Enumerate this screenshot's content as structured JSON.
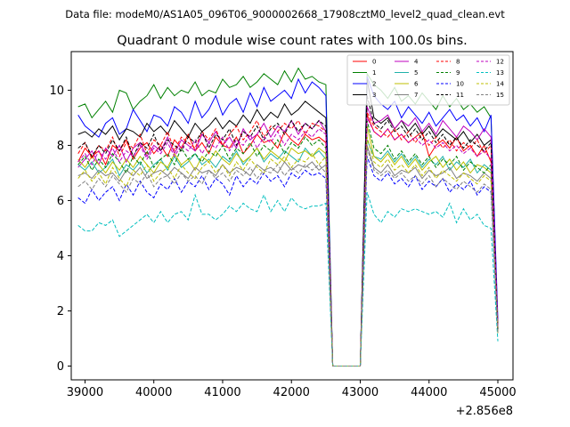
{
  "chart_data": {
    "type": "line",
    "suptitle": "Data file: modeM0/AS1A05_096T06_9000002668_17908cztM0_level2_quad_clean.evt",
    "title": "Quadrant 0 module wise count rates with 100.0s bins.",
    "xlabel": "",
    "ylabel": "",
    "x_offset_label": "+2.856e8",
    "xlim": [
      38800,
      45220
    ],
    "ylim": [
      -0.5,
      11.4
    ],
    "xticks": [
      39000,
      40000,
      41000,
      42000,
      43000,
      44000,
      45000
    ],
    "yticks": [
      0,
      2,
      4,
      6,
      8,
      10
    ],
    "legend_position": "top-right",
    "x_start": 38900,
    "x_step": 100,
    "series": [
      {
        "name": "0",
        "color": "#ff0000",
        "dash": "solid",
        "values": [
          7.4,
          7.9,
          7.6,
          7.8,
          7.3,
          8.0,
          7.8,
          8.2,
          7.5,
          7.9,
          8.1,
          7.7,
          8.0,
          7.6,
          8.2,
          7.9,
          8.4,
          7.8,
          8.1,
          7.7,
          8.3,
          8.0,
          7.9,
          8.3,
          7.7,
          8.0,
          8.4,
          8.1,
          8.2,
          7.9,
          8.5,
          8.2,
          8.0,
          8.4,
          8.2,
          8.3,
          8.1,
          0.0,
          0.0,
          0.0,
          0.0,
          0.0,
          9.1,
          8.5,
          8.3,
          8.6,
          8.2,
          8.4,
          8.1,
          8.3,
          8.5,
          7.6,
          8.0,
          8.2,
          7.9,
          8.3,
          7.8,
          8.0,
          7.6,
          8.0,
          7.4,
          1.5
        ]
      },
      {
        "name": "1",
        "color": "#008000",
        "dash": "solid",
        "values": [
          9.4,
          9.5,
          9.0,
          9.3,
          9.6,
          9.2,
          10.0,
          9.9,
          9.3,
          9.6,
          9.8,
          10.2,
          9.7,
          10.1,
          9.8,
          10.0,
          9.9,
          10.3,
          9.8,
          10.0,
          9.9,
          10.4,
          10.1,
          10.2,
          10.5,
          10.1,
          10.3,
          10.6,
          10.4,
          10.2,
          10.7,
          10.3,
          10.8,
          10.4,
          10.5,
          10.3,
          10.2,
          0.0,
          0.0,
          0.0,
          0.0,
          0.0,
          10.6,
          10.2,
          10.0,
          9.7,
          10.1,
          9.6,
          9.8,
          9.5,
          9.9,
          9.6,
          9.3,
          9.8,
          9.4,
          9.7,
          9.3,
          9.5,
          9.2,
          9.4,
          9.0,
          1.4
        ]
      },
      {
        "name": "2",
        "color": "#0000ff",
        "dash": "solid",
        "values": [
          9.1,
          8.7,
          8.5,
          8.3,
          8.8,
          9.0,
          8.4,
          8.6,
          9.3,
          8.9,
          8.5,
          9.1,
          9.0,
          8.7,
          9.4,
          9.2,
          8.8,
          9.6,
          9.0,
          9.3,
          9.8,
          9.1,
          9.5,
          9.7,
          9.2,
          9.9,
          9.4,
          10.1,
          9.6,
          9.8,
          10.0,
          9.7,
          10.4,
          9.9,
          10.3,
          10.1,
          9.8,
          0.0,
          0.0,
          0.0,
          0.0,
          0.0,
          10.5,
          9.8,
          9.5,
          9.3,
          9.6,
          9.0,
          9.4,
          9.1,
          8.8,
          9.2,
          8.7,
          9.0,
          9.3,
          8.9,
          9.1,
          8.7,
          9.0,
          8.5,
          9.1,
          1.7
        ]
      },
      {
        "name": "3",
        "color": "#000000",
        "dash": "solid",
        "values": [
          8.4,
          8.5,
          8.3,
          8.6,
          8.4,
          8.7,
          8.2,
          8.6,
          8.5,
          8.3,
          8.8,
          8.5,
          8.7,
          8.4,
          8.9,
          8.6,
          8.3,
          8.8,
          8.5,
          8.7,
          9.0,
          8.6,
          8.9,
          8.7,
          9.1,
          8.8,
          9.3,
          8.9,
          9.2,
          9.0,
          9.5,
          9.1,
          9.3,
          9.6,
          9.4,
          9.2,
          9.0,
          0.0,
          0.0,
          0.0,
          0.0,
          0.0,
          10.4,
          9.0,
          8.8,
          9.0,
          8.6,
          8.9,
          8.5,
          8.8,
          8.4,
          8.7,
          8.3,
          8.6,
          8.4,
          8.2,
          8.5,
          8.1,
          8.4,
          8.0,
          8.2,
          1.3
        ]
      },
      {
        "name": "4",
        "color": "#bf00bf",
        "dash": "solid",
        "values": [
          7.2,
          7.5,
          7.8,
          7.3,
          7.9,
          7.6,
          8.0,
          7.4,
          7.9,
          8.1,
          7.6,
          8.0,
          7.8,
          8.3,
          7.7,
          8.2,
          8.0,
          7.8,
          8.4,
          8.1,
          8.5,
          8.0,
          8.3,
          7.9,
          8.6,
          8.2,
          8.4,
          8.8,
          8.3,
          8.7,
          8.5,
          8.9,
          8.4,
          8.8,
          8.6,
          8.9,
          8.5,
          0.0,
          0.0,
          0.0,
          0.0,
          0.0,
          9.4,
          8.8,
          8.9,
          9.1,
          8.6,
          8.9,
          8.7,
          9.0,
          8.5,
          8.8,
          8.4,
          8.9,
          8.6,
          8.3,
          8.7,
          8.5,
          8.2,
          8.6,
          8.3,
          1.5
        ]
      },
      {
        "name": "5",
        "color": "#20b2aa",
        "dash": "solid",
        "values": [
          7.3,
          7.1,
          7.4,
          7.0,
          7.2,
          7.5,
          6.9,
          7.3,
          7.1,
          7.4,
          7.0,
          7.3,
          7.5,
          7.1,
          7.6,
          7.2,
          7.4,
          7.7,
          7.3,
          7.5,
          7.2,
          7.6,
          7.4,
          7.8,
          7.3,
          7.6,
          7.9,
          7.4,
          7.7,
          7.5,
          7.8,
          7.6,
          7.4,
          7.9,
          7.6,
          7.8,
          7.5,
          0.0,
          0.0,
          0.0,
          0.0,
          0.0,
          8.2,
          7.6,
          7.5,
          7.8,
          7.4,
          7.7,
          7.3,
          7.6,
          7.2,
          7.5,
          7.3,
          7.6,
          7.1,
          7.4,
          7.2,
          7.5,
          7.0,
          7.3,
          7.1,
          1.2
        ]
      },
      {
        "name": "6",
        "color": "#bfbf00",
        "dash": "solid",
        "values": [
          7.5,
          7.2,
          7.6,
          7.3,
          7.0,
          7.4,
          7.1,
          7.5,
          7.2,
          7.6,
          7.3,
          7.0,
          7.4,
          7.2,
          7.7,
          7.3,
          7.5,
          7.1,
          7.6,
          7.4,
          7.8,
          7.5,
          7.3,
          7.7,
          7.4,
          7.6,
          7.9,
          7.5,
          7.8,
          7.6,
          7.4,
          7.9,
          7.7,
          7.8,
          7.6,
          7.9,
          7.7,
          0.0,
          0.0,
          0.0,
          0.0,
          0.0,
          8.7,
          7.6,
          7.4,
          7.7,
          7.3,
          7.6,
          7.2,
          7.5,
          7.1,
          7.4,
          7.6,
          7.2,
          7.5,
          7.1,
          7.4,
          7.0,
          7.3,
          7.2,
          7.0,
          1.4
        ]
      },
      {
        "name": "7",
        "color": "#808080",
        "dash": "solid",
        "values": [
          6.9,
          7.0,
          6.8,
          7.1,
          6.9,
          7.0,
          6.7,
          7.1,
          6.9,
          7.2,
          6.8,
          7.0,
          7.1,
          6.9,
          7.2,
          7.0,
          6.8,
          7.2,
          7.0,
          7.1,
          6.9,
          7.3,
          7.0,
          7.2,
          7.1,
          6.9,
          7.3,
          7.1,
          7.2,
          7.0,
          7.4,
          7.1,
          7.3,
          7.2,
          7.4,
          7.1,
          7.3,
          0.0,
          0.0,
          0.0,
          0.0,
          0.0,
          8.0,
          7.2,
          7.0,
          7.3,
          6.9,
          7.1,
          7.0,
          7.2,
          6.8,
          7.1,
          6.9,
          7.0,
          7.2,
          6.8,
          7.0,
          6.9,
          6.7,
          7.0,
          6.8,
          1.3
        ]
      },
      {
        "name": "8",
        "color": "#ff0000",
        "dash": "dashed",
        "values": [
          7.7,
          8.1,
          7.5,
          8.0,
          7.8,
          8.3,
          7.6,
          8.1,
          7.9,
          8.4,
          7.7,
          8.2,
          8.0,
          8.5,
          7.8,
          8.3,
          8.1,
          7.9,
          8.5,
          8.2,
          8.6,
          8.0,
          8.4,
          8.7,
          8.2,
          8.5,
          8.9,
          8.3,
          8.7,
          8.5,
          8.8,
          8.6,
          8.9,
          8.4,
          8.8,
          8.7,
          8.5,
          0.0,
          0.0,
          0.0,
          0.0,
          0.0,
          9.2,
          8.7,
          8.5,
          8.3,
          8.6,
          8.2,
          8.5,
          8.1,
          8.4,
          8.0,
          8.3,
          7.9,
          8.2,
          7.8,
          8.1,
          7.9,
          8.2,
          7.7,
          8.0,
          1.3
        ]
      },
      {
        "name": "9",
        "color": "#008000",
        "dash": "dashed",
        "values": [
          7.3,
          7.6,
          7.1,
          7.5,
          7.2,
          7.7,
          7.4,
          7.0,
          7.6,
          7.3,
          7.8,
          7.2,
          7.5,
          7.7,
          7.3,
          7.9,
          7.5,
          7.7,
          7.4,
          7.8,
          7.6,
          8.0,
          7.5,
          7.9,
          7.7,
          8.1,
          7.6,
          8.0,
          7.8,
          8.2,
          7.7,
          8.1,
          7.9,
          8.3,
          8.0,
          8.2,
          7.9,
          0.0,
          0.0,
          0.0,
          0.0,
          0.0,
          8.9,
          7.9,
          7.7,
          8.0,
          7.5,
          7.8,
          7.4,
          7.7,
          7.3,
          7.6,
          7.2,
          7.5,
          7.3,
          7.6,
          7.1,
          7.4,
          7.2,
          7.0,
          7.3,
          1.4
        ]
      },
      {
        "name": "10",
        "color": "#0000ff",
        "dash": "dashed",
        "values": [
          6.1,
          5.9,
          6.4,
          6.0,
          6.3,
          6.5,
          6.0,
          6.6,
          6.2,
          6.7,
          6.3,
          6.1,
          6.6,
          6.4,
          6.8,
          6.3,
          6.7,
          6.5,
          6.9,
          6.4,
          6.8,
          6.6,
          6.2,
          6.9,
          6.5,
          6.8,
          6.6,
          7.0,
          6.7,
          6.9,
          6.5,
          7.0,
          6.8,
          7.1,
          6.9,
          7.0,
          6.8,
          0.0,
          0.0,
          0.0,
          0.0,
          0.0,
          7.6,
          6.9,
          6.7,
          7.0,
          6.6,
          6.8,
          6.5,
          6.9,
          6.4,
          6.7,
          6.5,
          6.8,
          6.3,
          6.6,
          6.4,
          6.7,
          6.2,
          6.5,
          6.3,
          1.2
        ]
      },
      {
        "name": "11",
        "color": "#000000",
        "dash": "dashed",
        "values": [
          7.9,
          8.1,
          7.6,
          8.0,
          7.7,
          8.2,
          7.8,
          8.3,
          7.6,
          8.1,
          7.9,
          8.4,
          7.8,
          8.2,
          8.0,
          7.8,
          8.3,
          8.1,
          8.5,
          7.9,
          8.4,
          8.2,
          8.6,
          8.0,
          8.5,
          8.3,
          8.7,
          8.2,
          8.6,
          8.8,
          8.4,
          8.9,
          8.5,
          8.8,
          8.6,
          8.9,
          8.7,
          0.0,
          0.0,
          0.0,
          0.0,
          0.0,
          9.8,
          8.8,
          8.6,
          8.9,
          8.5,
          8.7,
          8.3,
          8.6,
          8.2,
          8.5,
          8.1,
          8.4,
          8.0,
          8.3,
          7.9,
          8.2,
          8.0,
          7.8,
          8.1,
          1.3
        ]
      },
      {
        "name": "12",
        "color": "#bf00bf",
        "dash": "dashed",
        "values": [
          7.4,
          7.7,
          7.3,
          7.8,
          7.5,
          7.9,
          7.4,
          7.8,
          7.6,
          8.0,
          7.5,
          7.9,
          7.7,
          8.1,
          7.6,
          8.0,
          7.8,
          8.2,
          7.7,
          8.1,
          7.9,
          8.3,
          7.8,
          8.2,
          8.0,
          8.4,
          7.9,
          8.3,
          8.1,
          8.5,
          8.0,
          8.4,
          8.2,
          8.5,
          8.3,
          8.6,
          8.4,
          0.0,
          0.0,
          0.0,
          0.0,
          0.0,
          9.0,
          8.5,
          8.3,
          8.6,
          8.2,
          8.4,
          8.1,
          8.3,
          8.0,
          8.2,
          7.9,
          8.1,
          7.8,
          8.0,
          7.7,
          7.9,
          7.6,
          7.8,
          7.5,
          1.4
        ]
      },
      {
        "name": "13",
        "color": "#00bfbf",
        "dash": "dashed",
        "values": [
          5.1,
          4.9,
          4.9,
          5.2,
          5.1,
          5.3,
          4.7,
          4.9,
          5.1,
          5.3,
          5.5,
          5.2,
          5.6,
          5.2,
          5.5,
          5.6,
          5.3,
          6.2,
          5.5,
          5.5,
          5.3,
          5.5,
          5.8,
          5.6,
          5.9,
          5.7,
          5.6,
          6.2,
          5.6,
          6.0,
          5.6,
          6.1,
          5.8,
          5.7,
          5.8,
          5.8,
          5.9,
          0.0,
          0.0,
          0.0,
          0.0,
          0.0,
          6.3,
          5.5,
          5.2,
          5.6,
          5.4,
          5.7,
          5.6,
          5.7,
          5.6,
          5.5,
          5.6,
          5.4,
          5.9,
          5.2,
          5.7,
          5.3,
          5.5,
          5.1,
          5.0,
          0.9
        ]
      },
      {
        "name": "14",
        "color": "#bfbf00",
        "dash": "dashed",
        "values": [
          6.8,
          7.1,
          6.7,
          7.0,
          6.6,
          7.2,
          6.8,
          6.5,
          7.1,
          6.9,
          7.3,
          6.7,
          7.0,
          7.2,
          6.8,
          7.3,
          7.0,
          6.8,
          7.2,
          7.4,
          7.0,
          7.3,
          6.9,
          7.4,
          7.1,
          7.5,
          7.2,
          7.0,
          7.5,
          7.3,
          7.6,
          7.2,
          7.5,
          7.4,
          7.7,
          7.3,
          7.6,
          0.0,
          0.0,
          0.0,
          0.0,
          0.0,
          8.3,
          7.4,
          7.2,
          7.5,
          7.1,
          7.3,
          7.0,
          7.3,
          6.9,
          7.2,
          6.8,
          7.1,
          6.9,
          6.7,
          7.0,
          6.8,
          6.6,
          6.9,
          6.7,
          1.2
        ]
      },
      {
        "name": "15",
        "color": "#808080",
        "dash": "dashed",
        "values": [
          6.5,
          6.7,
          6.4,
          6.8,
          6.5,
          6.9,
          6.6,
          6.3,
          6.8,
          6.6,
          7.0,
          6.5,
          6.8,
          6.9,
          6.6,
          7.0,
          6.7,
          6.9,
          6.6,
          7.1,
          6.8,
          7.0,
          6.7,
          7.1,
          6.9,
          7.2,
          6.8,
          7.1,
          7.0,
          7.3,
          6.9,
          7.2,
          7.0,
          7.3,
          7.1,
          7.3,
          7.0,
          0.0,
          0.0,
          0.0,
          0.0,
          0.0,
          7.9,
          7.1,
          6.9,
          7.1,
          6.8,
          7.0,
          6.7,
          6.9,
          6.6,
          6.9,
          6.5,
          6.8,
          6.6,
          6.4,
          6.7,
          6.5,
          6.3,
          6.6,
          6.4,
          1.2
        ]
      }
    ]
  }
}
